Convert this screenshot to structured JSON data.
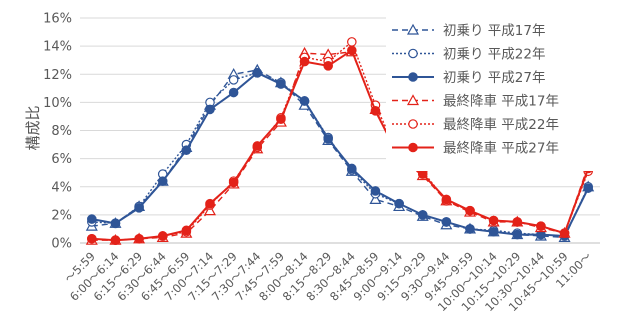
{
  "chart_data": {
    "type": "line",
    "ylabel": "構成比",
    "ylim": [
      0,
      16
    ],
    "y_tick_step": 2,
    "y_tick_format": "percent",
    "grid": "horizontal",
    "legend_position": "top-right",
    "categories": [
      "～5:59",
      "6:00～6:14",
      "6:15～6:29",
      "6:30～6:44",
      "6:45～6:59",
      "7:00～7:14",
      "7:15～7:29",
      "7:30～7:44",
      "7:45～7:59",
      "8:00～8:14",
      "8:15～8:29",
      "8:30～8:44",
      "8:45～8:59",
      "9:00～9:14",
      "9:15～9:29",
      "9:30～9:44",
      "9:45～9:59",
      "10:00～10:14",
      "10:15～10:29",
      "10:30～10:44",
      "10:45～10:59",
      "11:00～"
    ],
    "series": [
      {
        "name": "初乗り 平成17年",
        "color": "#2f5597",
        "dash": "6,4",
        "marker": "triangle",
        "filled": false,
        "values": [
          1.2,
          1.4,
          2.6,
          4.4,
          6.8,
          9.8,
          12.0,
          12.3,
          11.4,
          9.8,
          7.3,
          5.1,
          3.1,
          2.6,
          1.9,
          1.3,
          1.0,
          0.8,
          0.6,
          0.5,
          0.4,
          4.0
        ]
      },
      {
        "name": "初乗り 平成22年",
        "color": "#2f5597",
        "dash": "2,2",
        "marker": "circle",
        "filled": false,
        "values": [
          1.5,
          1.4,
          2.6,
          4.9,
          7.0,
          10.0,
          11.6,
          12.1,
          11.4,
          10.1,
          7.5,
          5.2,
          3.5,
          2.8,
          2.0,
          1.5,
          1.0,
          0.9,
          0.7,
          0.6,
          0.5,
          4.0
        ]
      },
      {
        "name": "初乗り 平成27年",
        "color": "#2f5597",
        "dash": "",
        "marker": "circle",
        "filled": true,
        "values": [
          1.7,
          1.4,
          2.5,
          4.4,
          6.6,
          9.5,
          10.7,
          12.1,
          11.3,
          10.1,
          7.4,
          5.3,
          3.7,
          2.8,
          2.0,
          1.5,
          1.0,
          0.8,
          0.6,
          0.6,
          0.5,
          3.9
        ]
      },
      {
        "name": "最終降車 平成17年",
        "color": "#e32219",
        "dash": "6,4",
        "marker": "triangle",
        "filled": false,
        "values": [
          0.2,
          0.2,
          0.3,
          0.4,
          0.7,
          2.3,
          4.2,
          6.7,
          8.6,
          13.5,
          13.4,
          13.6,
          9.5,
          6.0,
          4.8,
          3.0,
          2.2,
          1.5,
          1.5,
          1.1,
          0.7,
          5.5
        ]
      },
      {
        "name": "最終降車 平成22年",
        "color": "#e32219",
        "dash": "2,2",
        "marker": "circle",
        "filled": false,
        "values": [
          0.3,
          0.2,
          0.3,
          0.5,
          0.8,
          2.7,
          4.4,
          6.8,
          8.9,
          13.2,
          12.9,
          14.3,
          9.8,
          6.2,
          5.1,
          3.0,
          2.3,
          1.6,
          1.5,
          1.2,
          0.7,
          5.1
        ]
      },
      {
        "name": "最終降車 平成27年",
        "color": "#e32219",
        "dash": "",
        "marker": "circle",
        "filled": true,
        "values": [
          0.3,
          0.2,
          0.3,
          0.5,
          0.9,
          2.8,
          4.3,
          6.9,
          8.8,
          12.9,
          12.6,
          13.7,
          9.4,
          6.1,
          4.9,
          3.1,
          2.3,
          1.6,
          1.5,
          1.2,
          0.7,
          5.3
        ]
      }
    ]
  }
}
